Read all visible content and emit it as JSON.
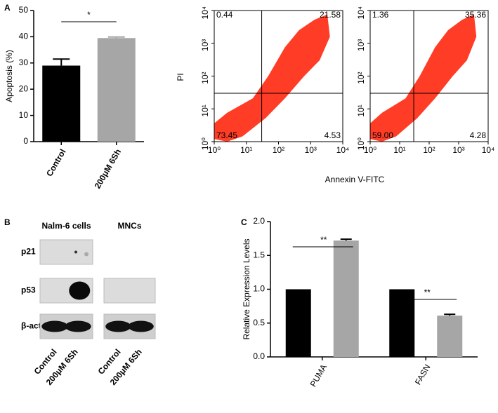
{
  "panels": [
    "A",
    "B",
    "C"
  ],
  "chart_data": [
    {
      "type": "bar",
      "ylabel": "Apoptosis (%)",
      "categories": [
        "Control",
        "200μM 6Sh"
      ],
      "values": [
        29,
        39.5
      ],
      "errors": [
        2.5,
        0.4
      ],
      "colors": [
        "#000000",
        "#a6a6a6"
      ],
      "ylim": [
        0,
        50
      ],
      "yticks": [
        0,
        10,
        20,
        30,
        40,
        50
      ],
      "significance": [
        "*"
      ]
    },
    {
      "type": "flow",
      "ylabel": "PI",
      "xlabel": "Annexin V-FITC",
      "log_scale": true,
      "color": "#ff1a00",
      "xlim": [
        1,
        10000
      ],
      "ylim": [
        1,
        10000
      ],
      "xticks": [
        {
          "value": 1,
          "label": "10⁰"
        },
        {
          "value": 10,
          "label": "10¹"
        },
        {
          "value": 100,
          "label": "10²"
        },
        {
          "value": 1000,
          "label": "10³"
        },
        {
          "value": 10000,
          "label": "10⁴"
        }
      ],
      "yticks": [
        {
          "value": 1,
          "label": "10⁰"
        },
        {
          "value": 10,
          "label": "10¹"
        },
        {
          "value": 100,
          "label": "10²"
        },
        {
          "value": 1000,
          "label": "10³"
        },
        {
          "value": 10000,
          "label": "10⁴"
        }
      ],
      "gate": [
        30,
        30
      ],
      "quadrants": {
        "values": [
          0.44,
          21.58,
          73.45,
          4.53
        ]
      }
    },
    {
      "type": "flow",
      "log_scale": true,
      "color": "#ff1a00",
      "xlim": [
        1,
        10000
      ],
      "ylim": [
        1,
        10000
      ],
      "xticks": [
        {
          "value": 1,
          "label": "10⁰"
        },
        {
          "value": 10,
          "label": "10¹"
        },
        {
          "value": 100,
          "label": "10²"
        },
        {
          "value": 1000,
          "label": "10³"
        },
        {
          "value": 10000,
          "label": "10⁴"
        }
      ],
      "yticks": [
        {
          "value": 1,
          "label": "10⁰"
        },
        {
          "value": 10,
          "label": "10¹"
        },
        {
          "value": 100,
          "label": "10²"
        },
        {
          "value": 1000,
          "label": "10³"
        },
        {
          "value": 10000,
          "label": "10⁴"
        }
      ],
      "gate": [
        30,
        30
      ],
      "quadrants": {
        "values": [
          1.36,
          35.36,
          59.0,
          4.28
        ],
        "value_labels": [
          "1.36",
          "35.36",
          "59.00",
          "4.28"
        ]
      }
    },
    {
      "type": "grouped_bar",
      "ylabel": "Relative Expression Levels",
      "categories": [
        "PUMA",
        "FASN"
      ],
      "series": [
        {
          "color": "#000000",
          "values": [
            1,
            1
          ]
        },
        {
          "color": "#a6a6a6",
          "values": [
            1.72,
            0.61
          ],
          "errors": [
            0.02,
            0.02
          ]
        }
      ],
      "ylim": [
        0,
        2
      ],
      "yticks": [
        {
          "value": 0,
          "label": "0.0"
        },
        0.5,
        {
          "value": 1,
          "label": "1.0"
        },
        1.5,
        {
          "value": 2,
          "label": "2.0"
        }
      ],
      "significance": [
        "**",
        "**"
      ]
    }
  ],
  "blot": {
    "groups": [
      "Nalm-6 cells",
      "MNCs"
    ],
    "rows": [
      "p21",
      "p53",
      "β-actin"
    ],
    "lanes": [
      [
        "Control",
        "200μM 6Sh"
      ],
      [
        "Control",
        "200μM 6Sh"
      ]
    ]
  }
}
